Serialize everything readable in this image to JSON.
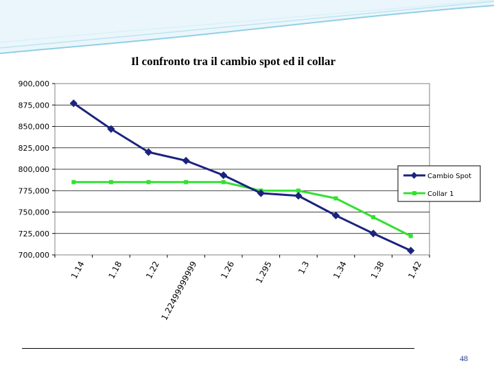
{
  "slide": {
    "title": "Il confronto tra il cambio spot ed il collar",
    "page_number": "48"
  },
  "colors": {
    "series_1": "#1a237e",
    "series_2": "#33e033",
    "header_light": "#e6f4fa",
    "header_line": "#9ad3ea"
  },
  "chart_data": {
    "type": "line",
    "title": "Il confronto tra il cambio spot ed il collar",
    "xlabel": "",
    "ylabel": "",
    "categories": [
      "1.14",
      "1.18",
      "1.22",
      "1.22499999999",
      "1.26",
      "1.295",
      "1.3",
      "1.34",
      "1.38",
      "1.42"
    ],
    "ylim": [
      700000,
      900000
    ],
    "yticks": [
      "900,000",
      "875,000",
      "850,000",
      "825,000",
      "800,000",
      "775,000",
      "750,000",
      "725,000",
      "700,000"
    ],
    "series": [
      {
        "name": "Cambio Spot",
        "values": [
          877000,
          847000,
          820000,
          810000,
          793000,
          772000,
          769000,
          746000,
          725000,
          705000
        ]
      },
      {
        "name": "Collar 1",
        "values": [
          785000,
          785000,
          785000,
          785000,
          785000,
          775000,
          775000,
          766000,
          744000,
          722000
        ]
      }
    ],
    "grid": true,
    "legend_position": "right"
  }
}
